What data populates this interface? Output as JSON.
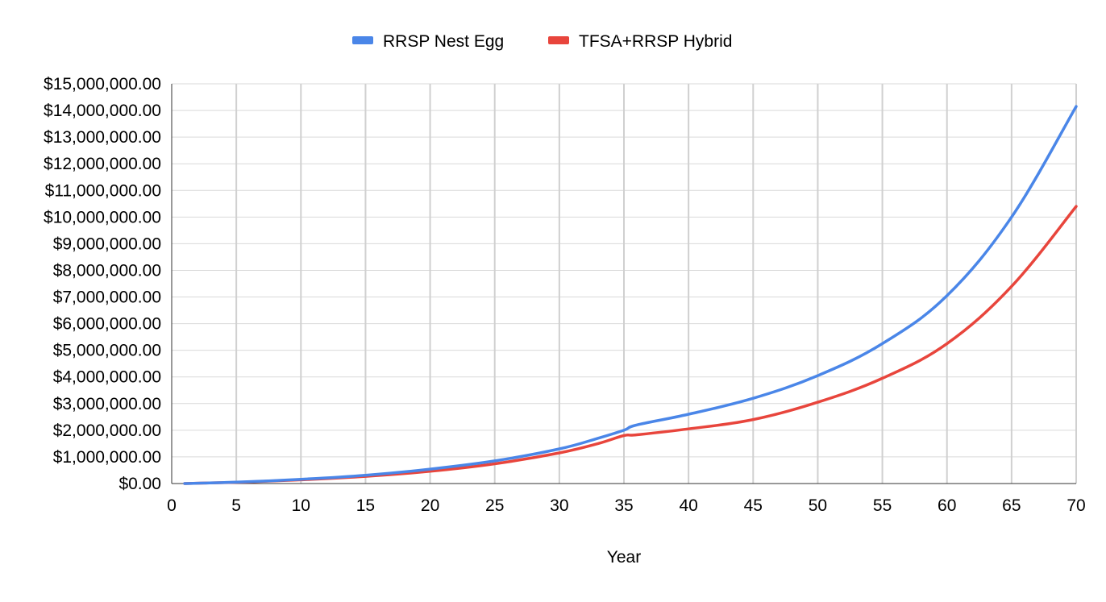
{
  "chart_data": {
    "type": "line",
    "title": "",
    "xlabel": "Year",
    "ylabel": "",
    "xlim": [
      0,
      70
    ],
    "ylim": [
      0,
      15000000
    ],
    "x_ticks": [
      0,
      5,
      10,
      15,
      20,
      25,
      30,
      35,
      40,
      45,
      50,
      55,
      60,
      65,
      70
    ],
    "y_ticks": [
      0,
      1000000,
      2000000,
      3000000,
      4000000,
      5000000,
      6000000,
      7000000,
      8000000,
      9000000,
      10000000,
      11000000,
      12000000,
      13000000,
      14000000,
      15000000
    ],
    "x_tick_labels": [
      "0",
      "5",
      "10",
      "15",
      "20",
      "25",
      "30",
      "35",
      "40",
      "45",
      "50",
      "55",
      "60",
      "65",
      "70"
    ],
    "y_tick_labels": [
      "$0.00",
      "$1,000,000.00",
      "$2,000,000.00",
      "$3,000,000.00",
      "$4,000,000.00",
      "$5,000,000.00",
      "$6,000,000.00",
      "$7,000,000.00",
      "$8,000,000.00",
      "$9,000,000.00",
      "$10,000,000.00",
      "$11,000,000.00",
      "$12,000,000.00",
      "$13,000,000.00",
      "$14,000,000.00",
      "$15,000,000.00"
    ],
    "grid": true,
    "legend_position": "top",
    "x": [
      1,
      5,
      10,
      15,
      20,
      25,
      30,
      33,
      35,
      36,
      40,
      45,
      50,
      55,
      60,
      65,
      70
    ],
    "series": [
      {
        "name": "RRSP Nest Egg",
        "color": "#4a86e8",
        "values": [
          0,
          50000,
          160000,
          310000,
          540000,
          850000,
          1300000,
          1700000,
          2000000,
          2200000,
          2600000,
          3200000,
          4050000,
          5250000,
          7050000,
          10000000,
          14150000
        ]
      },
      {
        "name": "TFSA+RRSP Hybrid",
        "color": "#e8453c",
        "values": [
          0,
          45000,
          140000,
          270000,
          460000,
          740000,
          1150000,
          1500000,
          1800000,
          1830000,
          2050000,
          2400000,
          3050000,
          3950000,
          5250000,
          7400000,
          10400000
        ]
      }
    ]
  }
}
